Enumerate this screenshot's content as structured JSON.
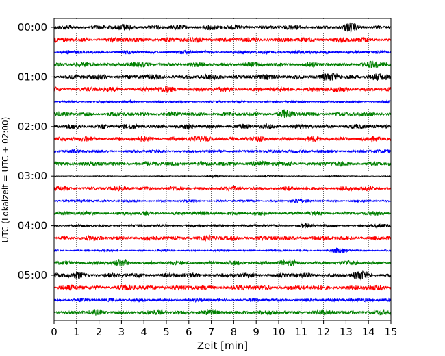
{
  "chart_data": {
    "type": "line",
    "title": "",
    "xlabel": "Zeit  [min]",
    "ylabel": "UTC (Lokalzeit = UTC + 02:00)",
    "xlim": [
      0,
      15
    ],
    "x_ticks": [
      0,
      1,
      2,
      3,
      4,
      5,
      6,
      7,
      8,
      9,
      10,
      11,
      12,
      13,
      14,
      15
    ],
    "y_tick_labels": [
      "00:00",
      "01:00",
      "02:00",
      "03:00",
      "04:00",
      "05:00"
    ],
    "y_tick_rows": [
      0,
      4,
      8,
      12,
      16,
      20
    ],
    "grid": "vertical dotted at each minute",
    "legend": "none",
    "rows_per_hour": 4,
    "row_minutes": 15,
    "color_cycle": [
      "#000000",
      "#ff0000",
      "#0000ff",
      "#008000"
    ],
    "rows": [
      {
        "start": "00:00",
        "color": "#000000",
        "amplitude": 3.2,
        "bursts": [
          [
            3.3,
            1.4
          ],
          [
            13.2,
            1.5
          ],
          [
            7.0,
            1.3
          ]
        ]
      },
      {
        "start": "00:15",
        "color": "#ff0000",
        "amplitude": 3.4,
        "bursts": [
          [
            6.5,
            1.3
          ],
          [
            12.8,
            1.3
          ]
        ]
      },
      {
        "start": "00:30",
        "color": "#0000ff",
        "amplitude": 2.6,
        "bursts": [
          [
            10.0,
            1.2
          ]
        ]
      },
      {
        "start": "00:45",
        "color": "#008000",
        "amplitude": 3.2,
        "bursts": [
          [
            3.3,
            1.3
          ],
          [
            14.3,
            1.5
          ]
        ]
      },
      {
        "start": "01:00",
        "color": "#000000",
        "amplitude": 3.6,
        "bursts": [
          [
            12.5,
            1.6
          ],
          [
            14.2,
            1.4
          ]
        ]
      },
      {
        "start": "01:15",
        "color": "#ff0000",
        "amplitude": 3.4,
        "bursts": [
          [
            4.8,
            1.3
          ],
          [
            11.8,
            1.3
          ]
        ]
      },
      {
        "start": "01:30",
        "color": "#0000ff",
        "amplitude": 1.6,
        "bursts": [
          [
            3.4,
            1.5
          ],
          [
            14.7,
            1.5
          ]
        ]
      },
      {
        "start": "01:45",
        "color": "#008000",
        "amplitude": 3.2,
        "bursts": [
          [
            10.3,
            1.6
          ]
        ]
      },
      {
        "start": "02:00",
        "color": "#000000",
        "amplitude": 3.3,
        "bursts": [
          [
            2.2,
            1.3
          ],
          [
            9.5,
            1.3
          ]
        ]
      },
      {
        "start": "02:15",
        "color": "#ff0000",
        "amplitude": 3.5,
        "bursts": [
          [
            7.2,
            1.2
          ]
        ]
      },
      {
        "start": "02:30",
        "color": "#0000ff",
        "amplitude": 2.2,
        "bursts": [
          [
            0.6,
            1.4
          ],
          [
            10.5,
            1.5
          ],
          [
            14.0,
            1.3
          ]
        ]
      },
      {
        "start": "02:45",
        "color": "#008000",
        "amplitude": 3.4,
        "bursts": [
          [
            9.0,
            1.3
          ]
        ]
      },
      {
        "start": "03:00",
        "color": "#000000",
        "amplitude": 0.6,
        "bursts": [
          [
            7.0,
            2.8
          ],
          [
            9.3,
            1.8
          ],
          [
            12.5,
            1.5
          ]
        ]
      },
      {
        "start": "03:15",
        "color": "#ff0000",
        "amplitude": 3.0,
        "bursts": [
          [
            4.0,
            1.3
          ],
          [
            14.0,
            1.2
          ]
        ]
      },
      {
        "start": "03:30",
        "color": "#0000ff",
        "amplitude": 1.6,
        "bursts": [
          [
            1.6,
            1.6
          ],
          [
            10.8,
            1.8
          ]
        ]
      },
      {
        "start": "03:45",
        "color": "#008000",
        "amplitude": 2.8,
        "bursts": [
          [
            7.5,
            1.3
          ]
        ]
      },
      {
        "start": "04:00",
        "color": "#000000",
        "amplitude": 1.8,
        "bursts": [
          [
            11.2,
            1.7
          ],
          [
            14.4,
            1.5
          ]
        ]
      },
      {
        "start": "04:15",
        "color": "#ff0000",
        "amplitude": 3.4,
        "bursts": [
          [
            8.0,
            1.2
          ]
        ]
      },
      {
        "start": "04:30",
        "color": "#0000ff",
        "amplitude": 1.4,
        "bursts": [
          [
            12.8,
            2.4
          ]
        ]
      },
      {
        "start": "04:45",
        "color": "#008000",
        "amplitude": 3.0,
        "bursts": [
          [
            10.2,
            1.4
          ],
          [
            3.0,
            1.3
          ]
        ]
      },
      {
        "start": "05:00",
        "color": "#000000",
        "amplitude": 3.2,
        "bursts": [
          [
            1.0,
            1.4
          ],
          [
            13.6,
            1.6
          ]
        ]
      },
      {
        "start": "05:15",
        "color": "#ff0000",
        "amplitude": 3.6,
        "bursts": [
          [
            5.0,
            1.2
          ]
        ]
      },
      {
        "start": "05:30",
        "color": "#0000ff",
        "amplitude": 2.2,
        "bursts": [
          [
            2.8,
            1.5
          ],
          [
            13.2,
            1.7
          ]
        ]
      },
      {
        "start": "05:45",
        "color": "#008000",
        "amplitude": 3.3,
        "bursts": [
          [
            8.5,
            1.2
          ]
        ]
      }
    ]
  }
}
